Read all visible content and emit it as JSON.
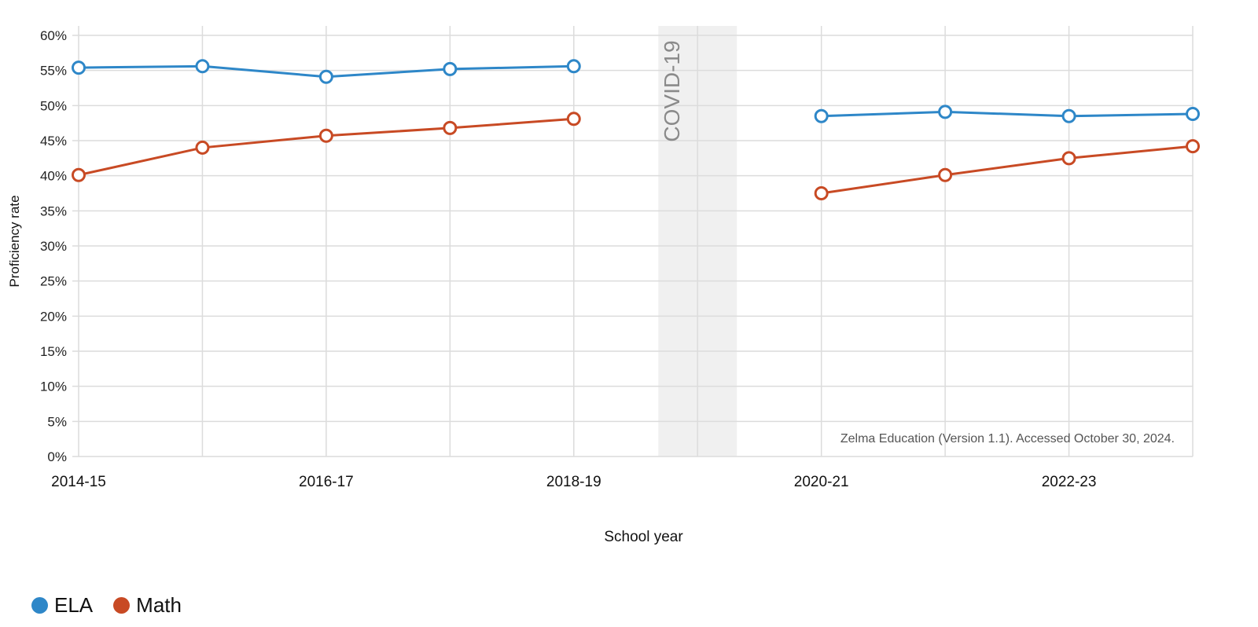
{
  "chart_data": {
    "type": "line",
    "xlabel": "School year",
    "ylabel": "Proficiency rate",
    "ylim": [
      0,
      60
    ],
    "y_ticks": [
      "0%",
      "5%",
      "10%",
      "15%",
      "20%",
      "25%",
      "30%",
      "35%",
      "40%",
      "45%",
      "50%",
      "55%",
      "60%"
    ],
    "x": [
      "2014-15",
      "2015-16",
      "2016-17",
      "2017-18",
      "2018-19",
      "2019-20",
      "2020-21",
      "2021-22",
      "2022-23",
      "2023-24"
    ],
    "x_tick_labels": [
      "2014-15",
      "2016-17",
      "2018-19",
      "2020-21",
      "2022-23"
    ],
    "grid": true,
    "legend_position": "bottom-left",
    "series": [
      {
        "name": "ELA",
        "color": "#2e87c8",
        "values": [
          55.4,
          55.6,
          54.1,
          55.2,
          55.6,
          null,
          48.5,
          49.1,
          48.5,
          48.8
        ]
      },
      {
        "name": "Math",
        "color": "#c84a24",
        "values": [
          40.1,
          44.0,
          45.7,
          46.8,
          48.1,
          null,
          37.5,
          40.1,
          42.5,
          44.2
        ]
      }
    ],
    "annotations": [
      {
        "text": "COVID-19",
        "x": "2019-20",
        "type": "shaded-band"
      },
      {
        "text": "Zelma Education (Version 1.1). Accessed October 30, 2024."
      }
    ]
  },
  "legend": [
    {
      "label": "ELA",
      "color": "#2e87c8"
    },
    {
      "label": "Math",
      "color": "#c84a24"
    }
  ]
}
